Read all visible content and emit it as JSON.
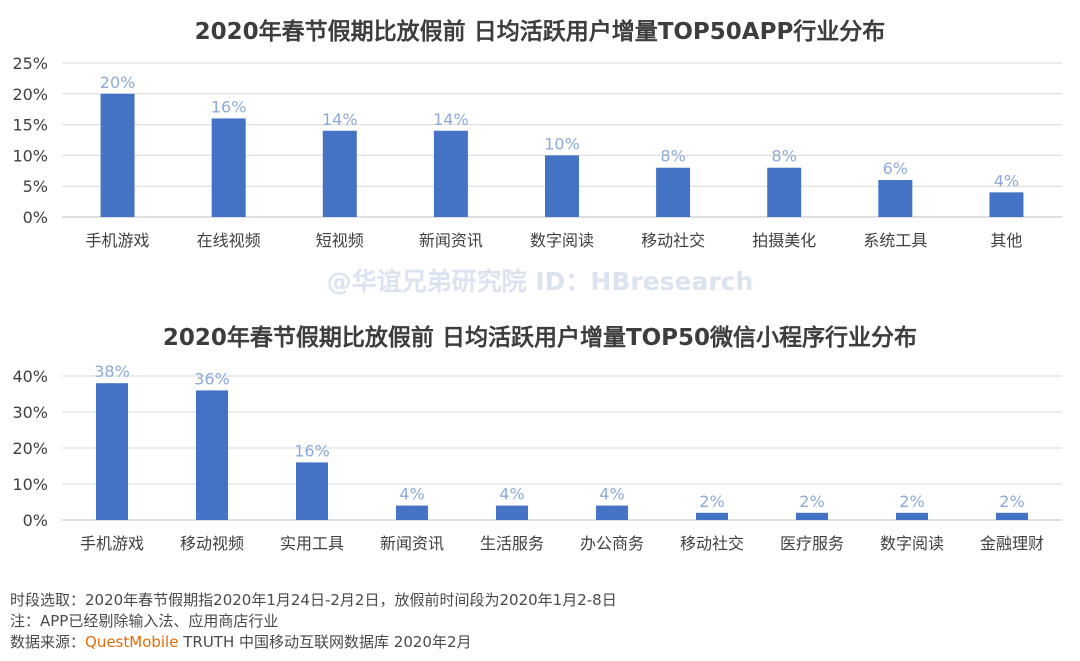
{
  "chart_data": [
    {
      "type": "bar",
      "title": "2020年春节假期比放假前 日均活跃用户增量TOP50APP行业分布",
      "categories": [
        "手机游戏",
        "在线视频",
        "短视频",
        "新闻资讯",
        "数字阅读",
        "移动社交",
        "拍摄美化",
        "系统工具",
        "其他"
      ],
      "values": [
        20,
        16,
        14,
        14,
        10,
        8,
        8,
        6,
        4
      ],
      "data_labels": [
        "20%",
        "16%",
        "14%",
        "14%",
        "10%",
        "8%",
        "8%",
        "6%",
        "4%"
      ],
      "yticks": [
        "0%",
        "5%",
        "10%",
        "15%",
        "20%",
        "25%"
      ],
      "ylim": [
        0,
        25
      ],
      "grid": true,
      "bar_color": "#4472c4",
      "label_color": "#8eaadb"
    },
    {
      "type": "bar",
      "title": "2020年春节假期比放假前 日均活跃用户增量TOP50微信小程序行业分布",
      "categories": [
        "手机游戏",
        "移动视频",
        "实用工具",
        "新闻资讯",
        "生活服务",
        "办公商务",
        "移动社交",
        "医疗服务",
        "数字阅读",
        "金融理财"
      ],
      "values": [
        38,
        36,
        16,
        4,
        4,
        4,
        2,
        2,
        2,
        2
      ],
      "data_labels": [
        "38%",
        "36%",
        "16%",
        "4%",
        "4%",
        "4%",
        "2%",
        "2%",
        "2%",
        "2%"
      ],
      "yticks": [
        "0%",
        "10%",
        "20%",
        "30%",
        "40%"
      ],
      "ylim": [
        0,
        40
      ],
      "grid": true,
      "bar_color": "#4472c4",
      "label_color": "#8eaadb"
    }
  ],
  "watermark": "@华谊兄弟研究院 ID：HBresearch",
  "footer": {
    "line1": "时段选取：2020年春节假期指2020年1月24日-2月2日，放假前时间段为2020年1月2-8日",
    "line2": "注：APP已经剔除输入法、应用商店行业",
    "line3_prefix": "数据来源：",
    "line3_brand": "QuestMobile",
    "line3_suffix": " TRUTH 中国移动互联网数据库 2020年2月"
  }
}
